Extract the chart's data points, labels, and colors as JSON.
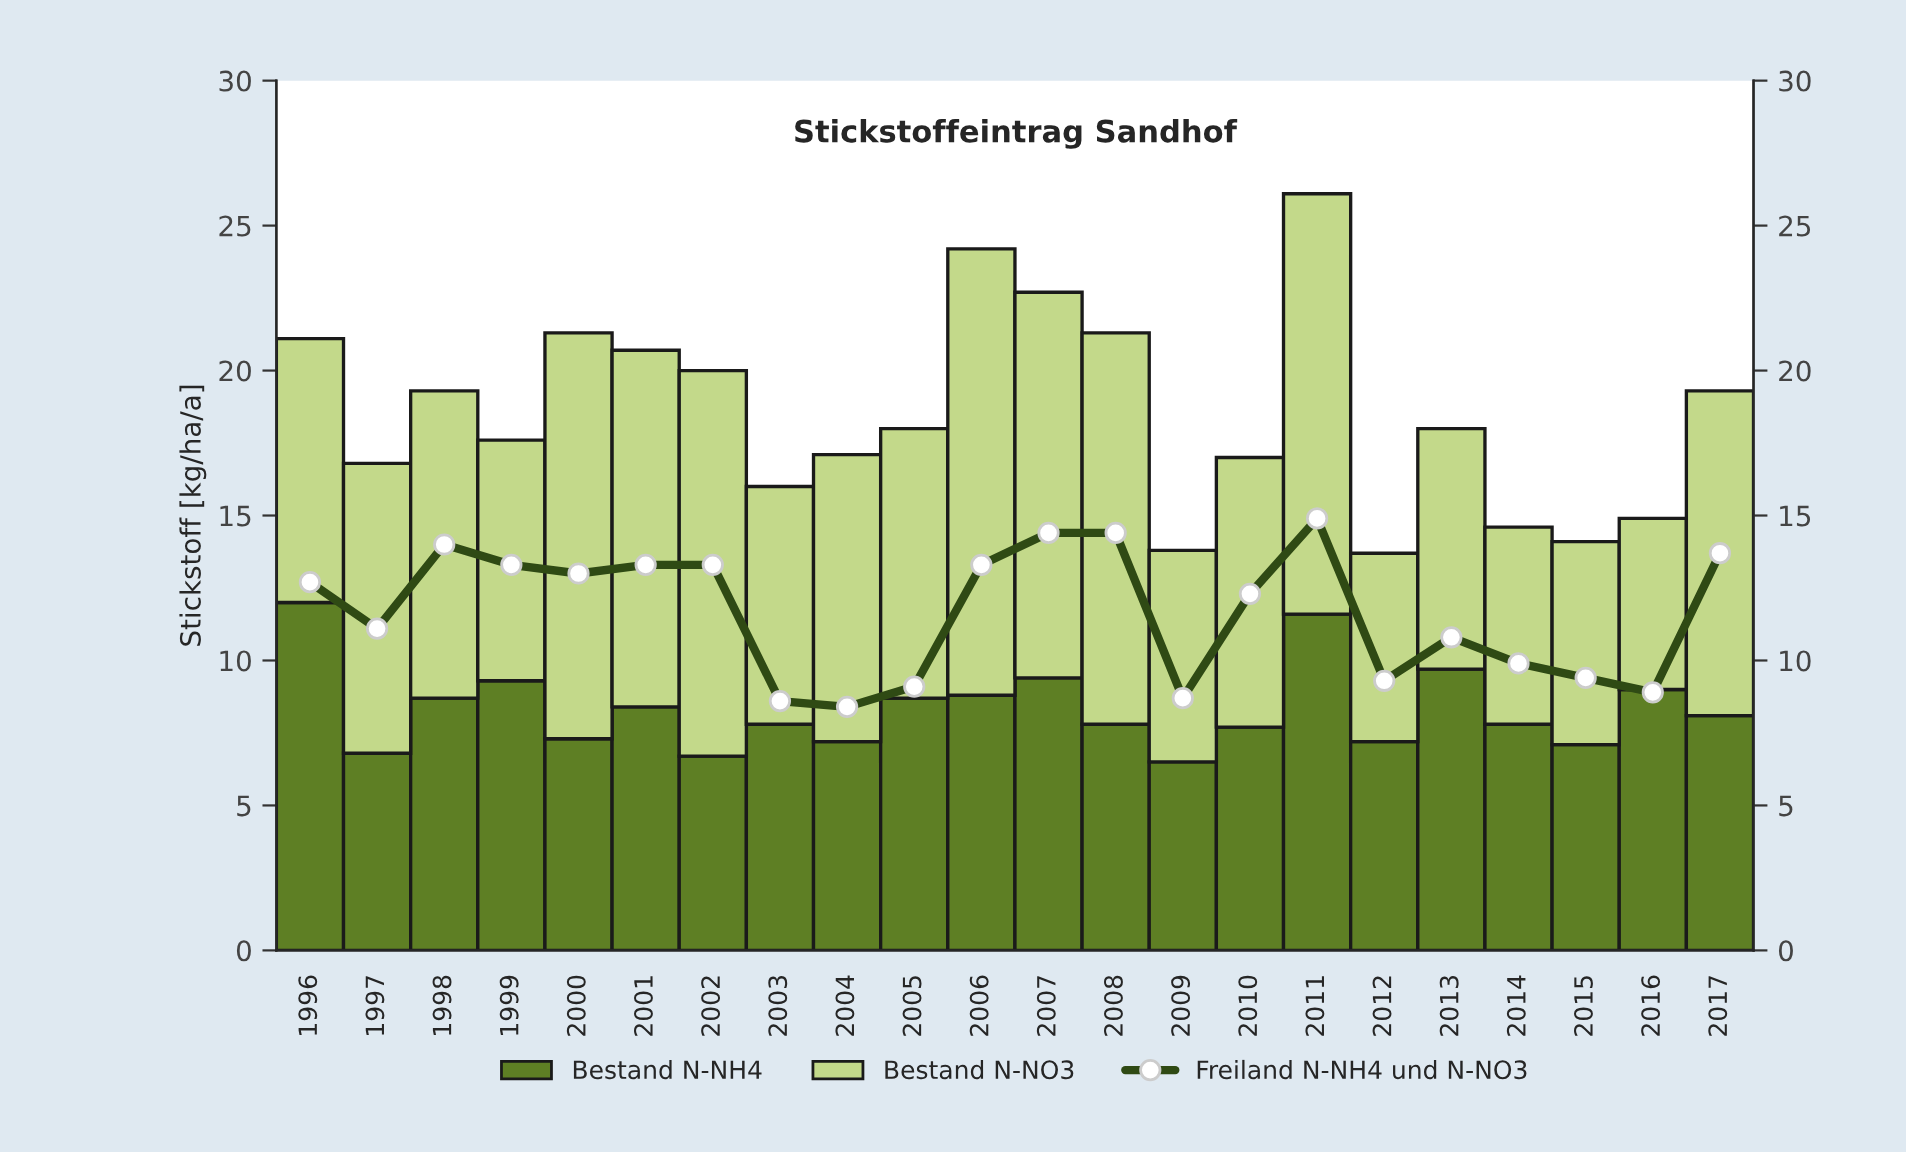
{
  "chart_data": {
    "type": "bar",
    "title": "Stickstoffeintrag Sandhof",
    "ylabel": "Stickstoff [kg/ha/a]",
    "categories": [
      "1996",
      "1997",
      "1998",
      "1999",
      "2000",
      "2001",
      "2002",
      "2003",
      "2004",
      "2005",
      "2006",
      "2007",
      "2008",
      "2009",
      "2010",
      "2011",
      "2012",
      "2013",
      "2014",
      "2015",
      "2016",
      "2017"
    ],
    "stacked": true,
    "series": [
      {
        "name": "Bestand N-NH4",
        "color": "#5e7f24",
        "values": [
          12.0,
          6.8,
          8.7,
          9.3,
          7.3,
          8.4,
          6.7,
          7.8,
          7.2,
          8.7,
          8.8,
          9.4,
          7.8,
          6.5,
          7.7,
          11.6,
          7.2,
          9.7,
          7.8,
          7.1,
          9.0,
          8.1
        ]
      },
      {
        "name": "Bestand N-NO3",
        "color": "#c3d98a",
        "values": [
          9.1,
          10.0,
          10.6,
          8.3,
          14.0,
          12.3,
          13.3,
          8.2,
          9.9,
          9.3,
          15.4,
          13.3,
          13.5,
          7.3,
          9.3,
          14.5,
          6.5,
          8.3,
          6.8,
          7.0,
          5.9,
          11.2
        ]
      },
      {
        "name": "Freiland N-NH4 und N-NO3",
        "type": "line",
        "color": "#2f4a14",
        "marker": "circle",
        "line_style": "solid",
        "values": [
          12.7,
          11.1,
          14.0,
          13.3,
          13.0,
          13.3,
          13.3,
          8.6,
          8.4,
          9.1,
          13.3,
          14.4,
          14.4,
          8.7,
          12.3,
          14.9,
          9.3,
          10.8,
          9.9,
          9.4,
          8.9,
          13.7
        ]
      }
    ],
    "ylim": [
      0,
      30
    ],
    "yticks": [
      0,
      5,
      10,
      15,
      20,
      25,
      30
    ],
    "y2lim": [
      0,
      30
    ],
    "y2ticks": [
      0,
      5,
      10,
      15,
      20,
      25,
      30
    ],
    "grid": false,
    "legend": "bottom"
  }
}
